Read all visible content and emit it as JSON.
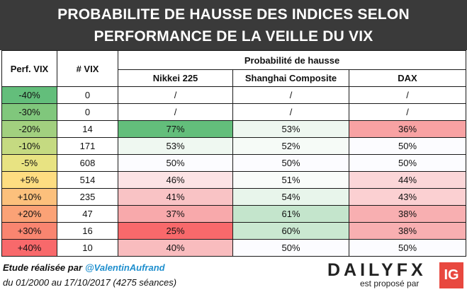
{
  "title": {
    "line1": "PROBABILITE DE HAUSSE DES INDICES SELON",
    "line2": "PERFORMANCE DE LA VEILLE DU VIX"
  },
  "table": {
    "col_perf": "Perf. VIX",
    "col_count": "# VIX",
    "group_header": "Probabilité de hausse",
    "indices": [
      "Nikkei 225",
      "Shanghai Composite",
      "DAX"
    ],
    "rows": [
      {
        "perf": "-40%",
        "count": "0",
        "nikkei": "/",
        "shanghai": "/",
        "dax": "/",
        "perf_color": "#63be7b",
        "nikkei_color": "#ffffff",
        "shanghai_color": "#ffffff",
        "dax_color": "#ffffff"
      },
      {
        "perf": "-30%",
        "count": "0",
        "nikkei": "/",
        "shanghai": "/",
        "dax": "/",
        "perf_color": "#80c77c",
        "nikkei_color": "#ffffff",
        "shanghai_color": "#ffffff",
        "dax_color": "#ffffff"
      },
      {
        "perf": "-20%",
        "count": "14",
        "nikkei": "77%",
        "shanghai": "53%",
        "dax": "36%",
        "perf_color": "#a2d07f",
        "nikkei_color": "#63be7b",
        "shanghai_color": "#eef7f0",
        "dax_color": "#f8a2a3"
      },
      {
        "perf": "-10%",
        "count": "171",
        "nikkei": "53%",
        "shanghai": "52%",
        "dax": "50%",
        "perf_color": "#c5da81",
        "nikkei_color": "#eff8f1",
        "shanghai_color": "#f6fbf7",
        "dax_color": "#fcfcff"
      },
      {
        "perf": "-5%",
        "count": "608",
        "nikkei": "50%",
        "shanghai": "50%",
        "dax": "50%",
        "perf_color": "#e8e382",
        "nikkei_color": "#fcfcff",
        "shanghai_color": "#fcfcff",
        "dax_color": "#fcfcff"
      },
      {
        "perf": "+5%",
        "count": "514",
        "nikkei": "46%",
        "shanghai": "51%",
        "dax": "44%",
        "perf_color": "#fedd81",
        "nikkei_color": "#fce3e5",
        "shanghai_color": "#f9fcfa",
        "dax_color": "#fbd6d8"
      },
      {
        "perf": "+10%",
        "count": "235",
        "nikkei": "41%",
        "shanghai": "54%",
        "dax": "43%",
        "perf_color": "#fcc07c",
        "nikkei_color": "#f9c3c5",
        "shanghai_color": "#e8f5eb",
        "dax_color": "#fbd0d2"
      },
      {
        "perf": "+20%",
        "count": "47",
        "nikkei": "37%",
        "shanghai": "61%",
        "dax": "38%",
        "perf_color": "#fba276",
        "nikkei_color": "#f8a9ab",
        "shanghai_color": "#c4e5cc",
        "dax_color": "#f8afb1"
      },
      {
        "perf": "+30%",
        "count": "16",
        "nikkei": "25%",
        "shanghai": "60%",
        "dax": "38%",
        "perf_color": "#f98570",
        "nikkei_color": "#f8696b",
        "shanghai_color": "#cae8d1",
        "dax_color": "#f8afb1"
      },
      {
        "perf": "+40%",
        "count": "10",
        "nikkei": "40%",
        "shanghai": "50%",
        "dax": "50%",
        "perf_color": "#f8696b",
        "nikkei_color": "#f9bcbe",
        "shanghai_color": "#fcfcff",
        "dax_color": "#fcfcff"
      }
    ]
  },
  "footer": {
    "study_label": "Etude réalisée par",
    "author": "@ValentinAufrand",
    "period": "du 01/2000 au 17/10/2017 (4275 séances)"
  },
  "logo": {
    "brand": "DAILYFX",
    "tagline": "est proposé par",
    "partner": "IG",
    "partner_color": "#e8483f"
  }
}
